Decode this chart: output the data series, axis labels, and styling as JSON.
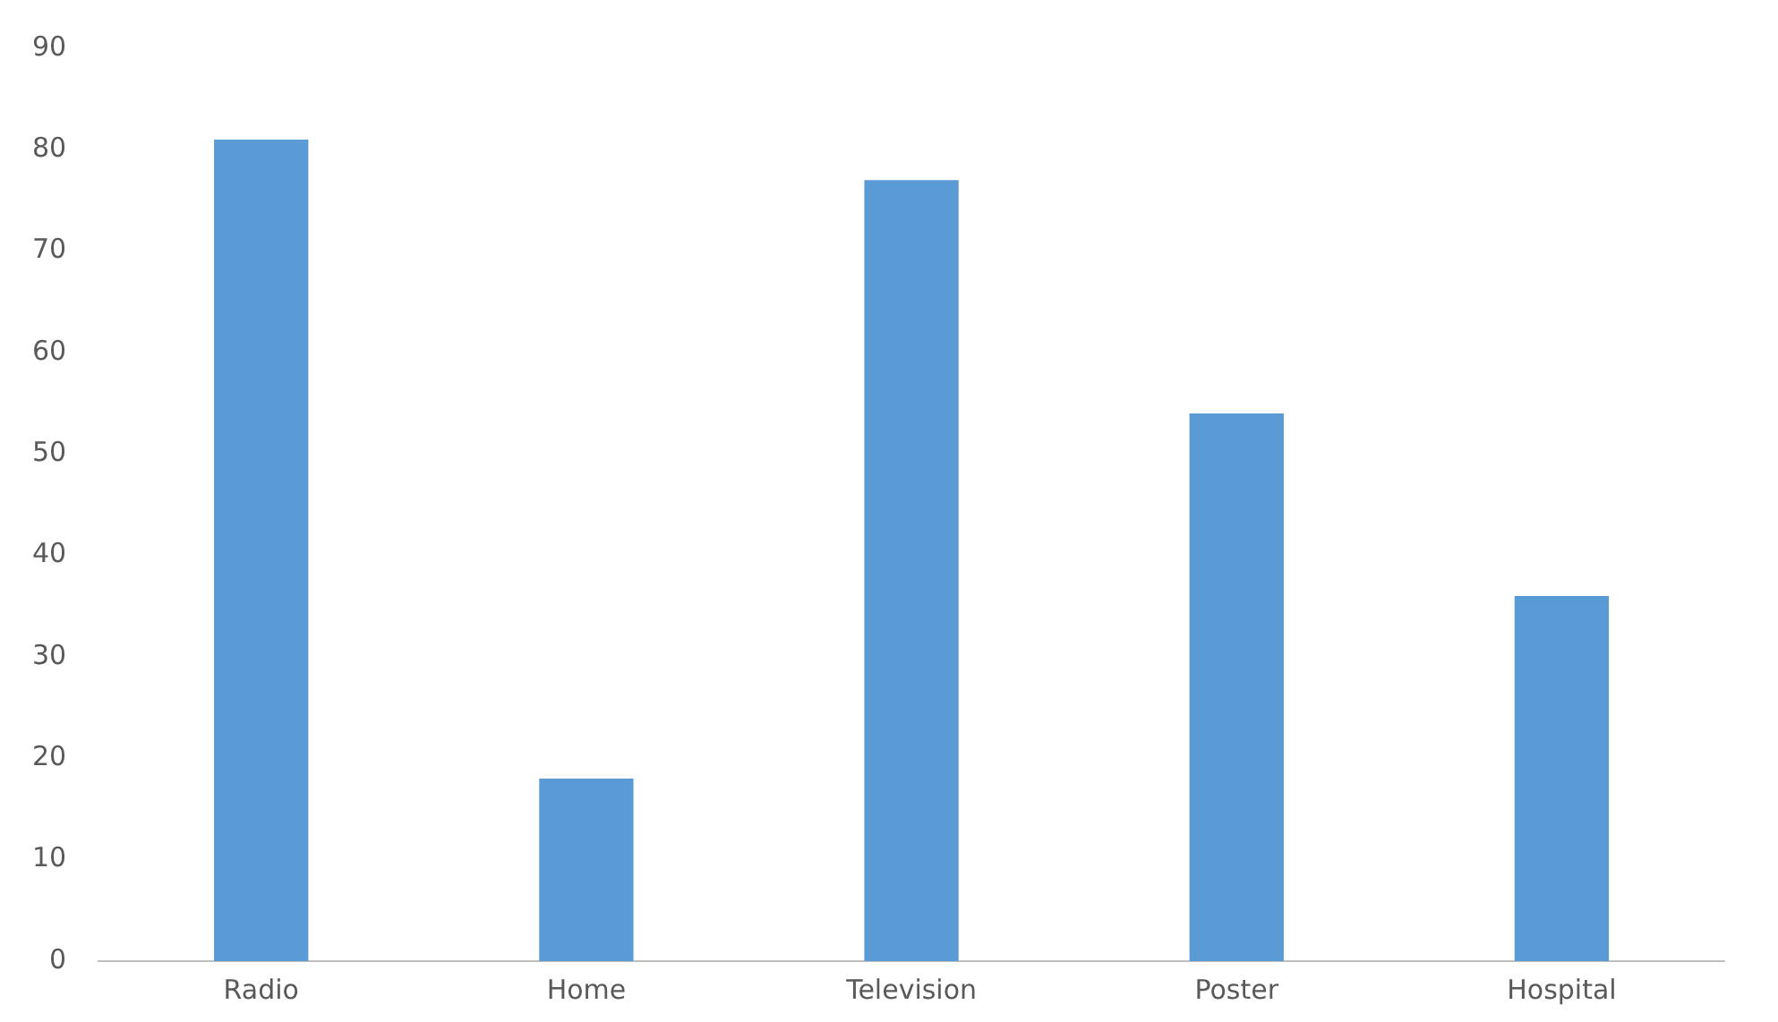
{
  "chart_data": {
    "type": "bar",
    "categories": [
      "Radio",
      "Home",
      "Television",
      "Poster",
      "Hospital"
    ],
    "values": [
      81,
      18,
      77,
      54,
      36
    ],
    "color": "#5b9bd5",
    "ylim": [
      0,
      90
    ],
    "yticks": [
      0,
      10,
      20,
      30,
      40,
      50,
      60,
      70,
      80,
      90
    ],
    "grid": false,
    "legend": false
  }
}
